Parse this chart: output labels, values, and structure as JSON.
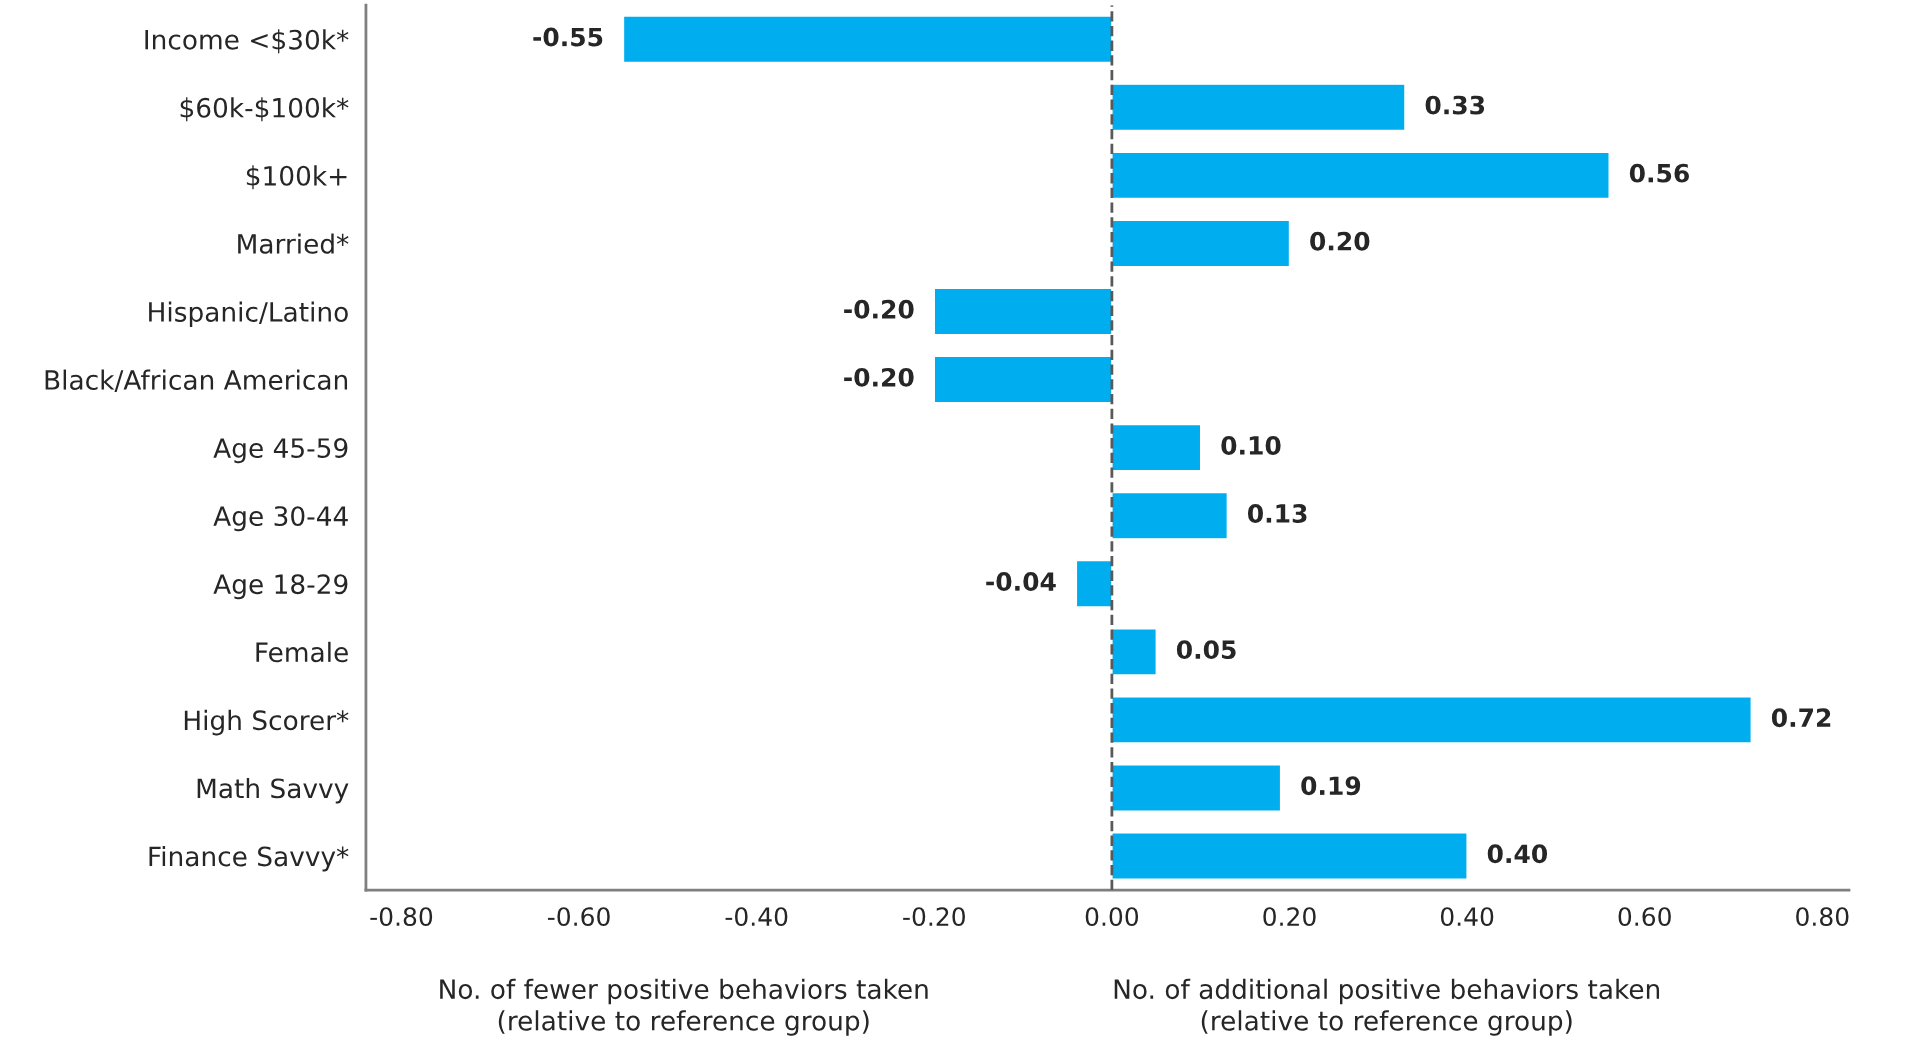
{
  "chart_data": {
    "type": "bar",
    "orientation": "horizontal",
    "categories": [
      "Income <$30k*",
      "$60k-$100k*",
      "$100k+",
      "Married*",
      "Hispanic/Latino",
      "Black/African American",
      "Age 45-59",
      "Age 30-44",
      "Age 18-29",
      "Female",
      "High Scorer*",
      "Math Savvy",
      "Finance Savvy*"
    ],
    "values": [
      -0.55,
      0.33,
      0.56,
      0.2,
      -0.2,
      -0.2,
      0.1,
      0.13,
      -0.04,
      0.05,
      0.72,
      0.19,
      0.4
    ],
    "value_labels": [
      "-0.55",
      "0.33",
      "0.56",
      "0.20",
      "-0.20",
      "-0.20",
      "0.10",
      "0.13",
      "-0.04",
      "0.05",
      "0.72",
      "0.19",
      "0.40"
    ],
    "color": "#00aeef",
    "xlim": [
      -0.84,
      0.83
    ],
    "xticks": [
      {
        "value": -0.8,
        "label": "-0.80"
      },
      {
        "value": -0.6,
        "label": "-0.60"
      },
      {
        "value": -0.4,
        "label": "-0.40"
      },
      {
        "value": -0.2,
        "label": "-0.20"
      },
      {
        "value": 0,
        "label": "0.00"
      },
      {
        "value": 0.2,
        "label": "0.20"
      },
      {
        "value": 0.4,
        "label": "0.40"
      },
      {
        "value": 0.6,
        "label": "0.60"
      },
      {
        "value": 0.8,
        "label": "0.80"
      }
    ],
    "ref_lines": [
      {
        "axis": "x",
        "value": 0,
        "color": "#595959",
        "line_style": "dashed"
      }
    ],
    "annotations": [
      "No. of fewer positive behaviors taken\n(relative to reference group)",
      "No. of additional positive behaviors taken\n(relative to reference group)"
    ],
    "grid": false,
    "legend": false
  }
}
